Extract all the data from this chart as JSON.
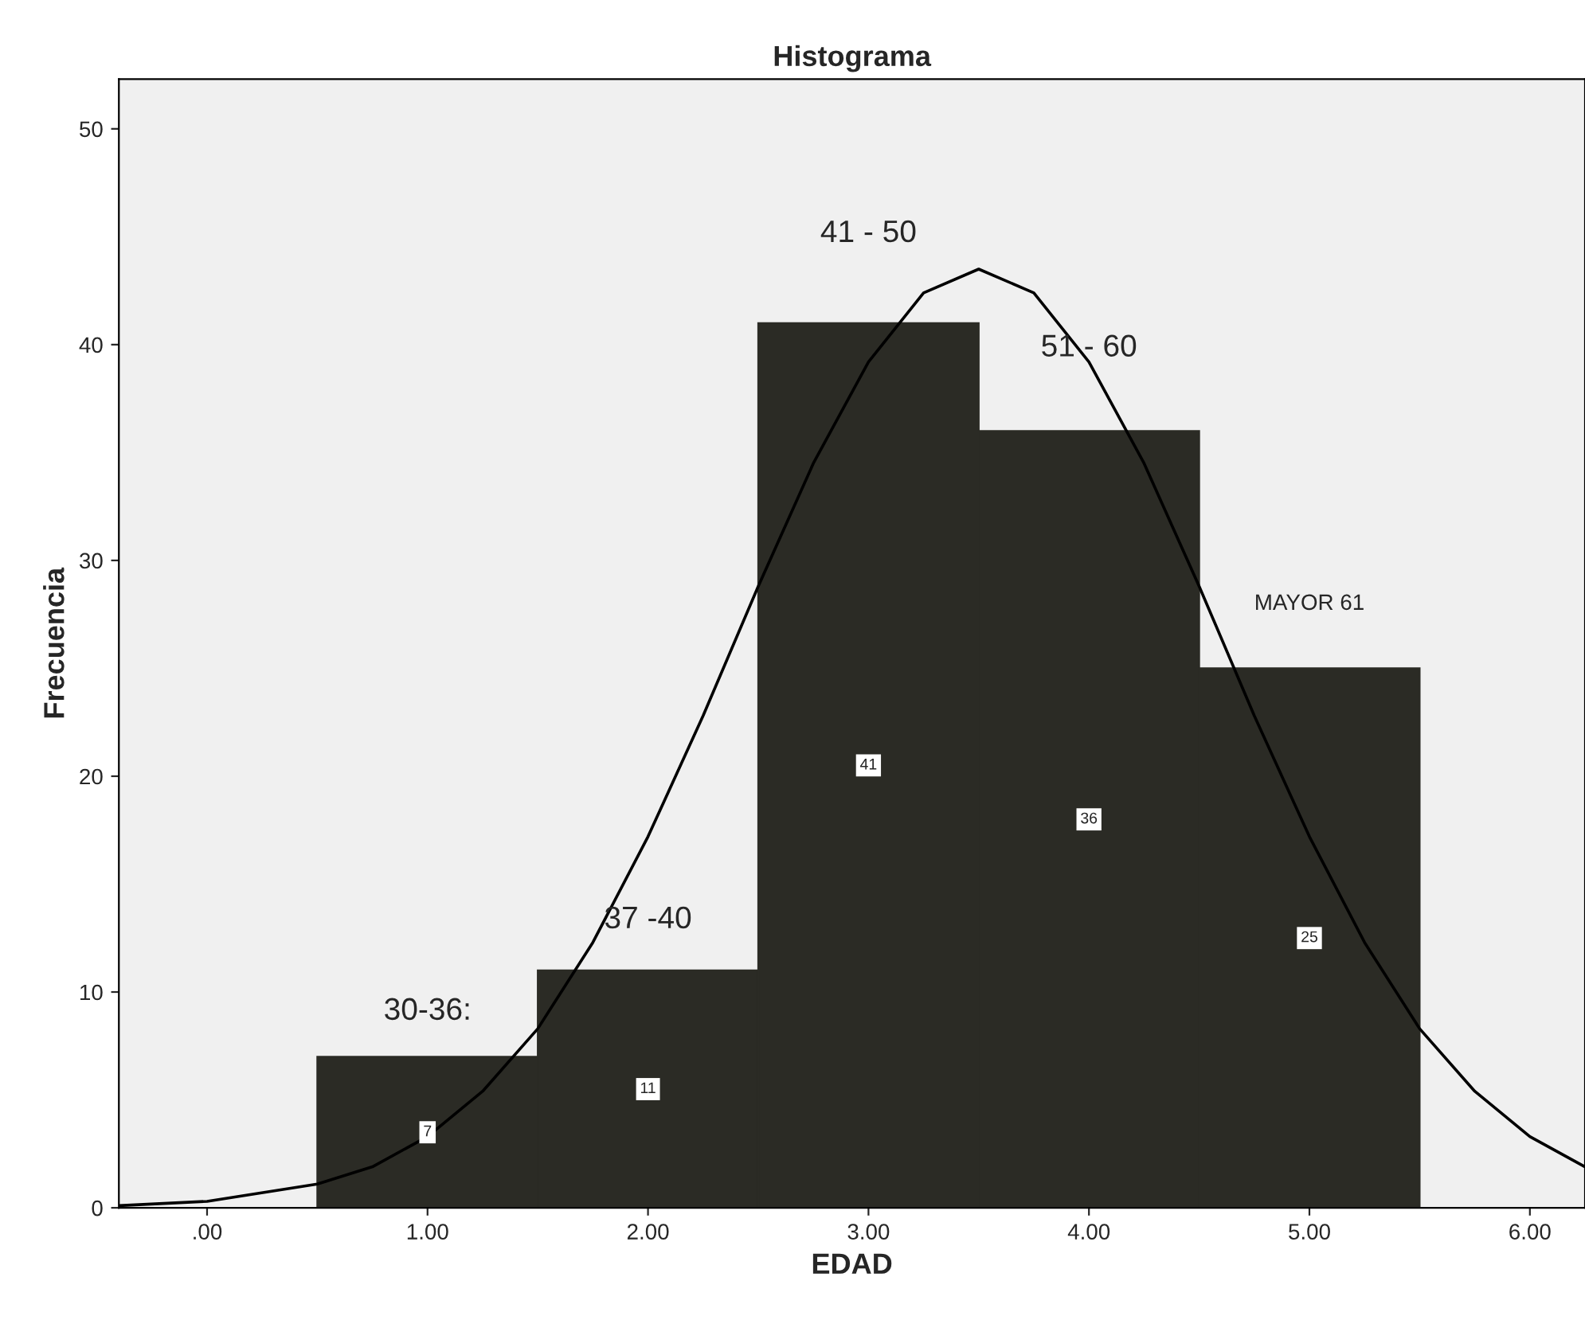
{
  "chart_data": {
    "type": "histogram",
    "title": "Histograma",
    "xlabel": "EDAD",
    "ylabel": "Frecuencia",
    "bins": [
      0.5,
      1.5,
      2.5,
      3.5,
      4.5,
      5.5
    ],
    "values": [
      7,
      11,
      41,
      36,
      25
    ],
    "color": "#2b2b25",
    "value_labels": [
      "7",
      "11",
      "41",
      "36",
      "25"
    ],
    "series": [
      {
        "type": "line",
        "color": "#000000",
        "x": [
          -0.4,
          0,
          0.5,
          0.75,
          1,
          1.25,
          1.5,
          1.75,
          2,
          2.25,
          2.5,
          2.75,
          3,
          3.25,
          3.5,
          3.75,
          4,
          4.25,
          4.5,
          4.75,
          5,
          5.25,
          5.5,
          5.75,
          6,
          6.25
        ],
        "values": [
          0.1,
          0.3,
          1.1,
          1.9,
          3.3,
          5.4,
          8.3,
          12.3,
          17.2,
          22.8,
          28.8,
          34.5,
          39.2,
          42.4,
          43.5,
          42.4,
          39.2,
          34.5,
          28.8,
          22.8,
          17.2,
          12.3,
          8.3,
          5.4,
          3.3,
          1.9
        ]
      }
    ],
    "annotations": [
      "30-36:",
      "37 -40",
      "41 - 50",
      "51 - 60",
      "MAYOR 61"
    ],
    "xlim": [
      -0.4,
      6.25
    ],
    "xticks": [
      {
        "value": 0,
        "label": ".00"
      },
      {
        "value": 1,
        "label": "1.00"
      },
      {
        "value": 2,
        "label": "2.00"
      },
      {
        "value": 3,
        "label": "3.00"
      },
      {
        "value": 4,
        "label": "4.00"
      },
      {
        "value": 5,
        "label": "5.00"
      },
      {
        "value": 6,
        "label": "6.00"
      }
    ],
    "ylim": [
      0,
      52.3
    ],
    "yticks": [
      0,
      10,
      20,
      30,
      40,
      50
    ],
    "grid": false,
    "legend": false
  }
}
